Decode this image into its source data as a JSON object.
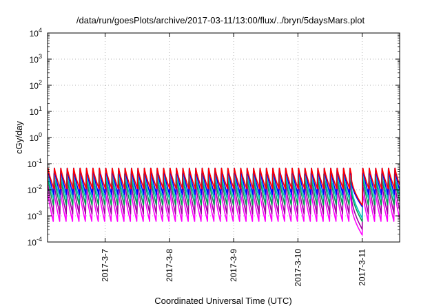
{
  "chart_data": {
    "type": "line",
    "title": "/data/run/goesPlots/archive/2017-03-11/13:00/flux/../bryn/5daysMars.plot",
    "xlabel": "Coordinated Universal Time (UTC)",
    "ylabel": "cGy/day",
    "yscale": "log",
    "ylim": [
      0.0001,
      10000
    ],
    "xlim": [
      "2017-03-06 02:30",
      "2017-03-11 14:00"
    ],
    "grid": true,
    "y_ticks": [
      {
        "base": "10",
        "exp": "-4",
        "value": 0.0001
      },
      {
        "base": "10",
        "exp": "-3",
        "value": 0.001
      },
      {
        "base": "10",
        "exp": "-2",
        "value": 0.01
      },
      {
        "base": "10",
        "exp": "-1",
        "value": 0.1
      },
      {
        "base": "10",
        "exp": "0",
        "value": 1
      },
      {
        "base": "10",
        "exp": "1",
        "value": 10
      },
      {
        "base": "10",
        "exp": "2",
        "value": 100
      },
      {
        "base": "10",
        "exp": "3",
        "value": 1000
      },
      {
        "base": "10",
        "exp": "4",
        "value": 10000
      }
    ],
    "x_ticks": [
      "2017-3-7",
      "2017-3-8",
      "2017-3-9",
      "2017-3-10",
      "2017-3-11"
    ],
    "period_hours": 2.4,
    "dip": {
      "start": "2017-03-10 20:00",
      "end": "2017-03-11 00:05"
    },
    "series": [
      {
        "color": "#ff0000",
        "peak": 0.075,
        "trough": 0.011,
        "dip_min": 0.0025
      },
      {
        "color": "#0000ff",
        "peak": 0.075,
        "trough": 0.0065,
        "dip_min": 0.0022
      },
      {
        "color": "#00bfbf",
        "peak": 0.045,
        "trough": 0.0045,
        "dip_min": 0.0008
      },
      {
        "color": "#00a050",
        "peak": 0.04,
        "trough": 0.0025,
        "dip_min": 0.0006
      },
      {
        "color": "#a000a0",
        "peak": 0.025,
        "trough": 0.0012,
        "dip_min": 0.0003
      },
      {
        "color": "#ff00ff",
        "peak": 0.012,
        "trough": 0.0006,
        "dip_min": 0.00018
      }
    ]
  }
}
